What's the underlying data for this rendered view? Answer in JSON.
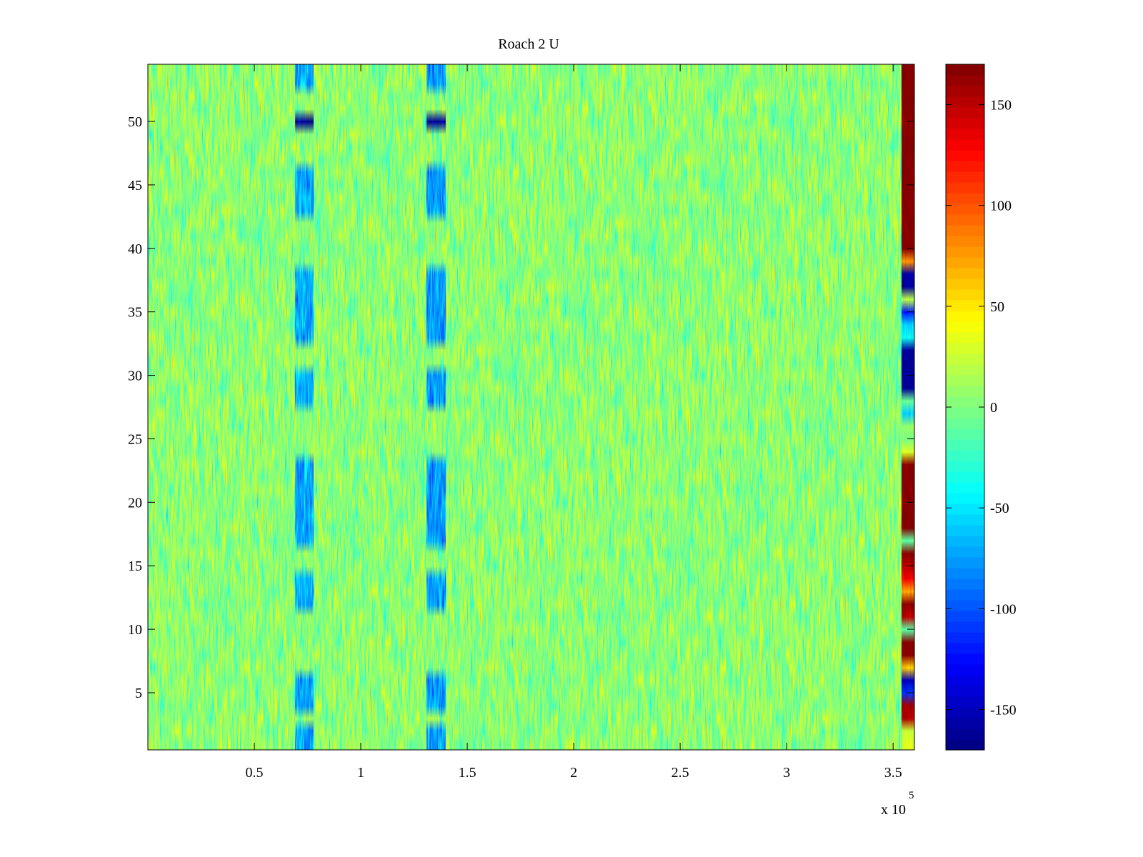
{
  "chart_data": {
    "type": "heatmap",
    "title": "Roach 2 U",
    "xlabel": "",
    "ylabel": "",
    "x_multiplier": "x 10",
    "x_multiplier_exponent": "5",
    "xlim": [
      0,
      360000
    ],
    "ylim": [
      0.5,
      54.5
    ],
    "x_ticks": [
      50000,
      100000,
      150000,
      200000,
      250000,
      300000,
      350000
    ],
    "x_tick_labels": [
      "0.5",
      "1",
      "1.5",
      "2",
      "2.5",
      "3",
      "3.5"
    ],
    "y_ticks": [
      5,
      10,
      15,
      20,
      25,
      30,
      35,
      40,
      45,
      50
    ],
    "y_tick_labels": [
      "5",
      "10",
      "15",
      "20",
      "25",
      "30",
      "35",
      "40",
      "45",
      "50"
    ],
    "rows": 54,
    "colorbar": {
      "colormap": "jet",
      "limits": [
        -170,
        170
      ],
      "ticks": [
        -150,
        -100,
        -50,
        0,
        50,
        100,
        150
      ],
      "tick_labels": [
        "-150",
        "-100",
        "-50",
        "0",
        "50",
        "100",
        "150"
      ]
    },
    "background_noise": {
      "mean": 5,
      "spread": 22
    },
    "features": [
      {
        "kind": "low-band",
        "x_range": [
          69000,
          78000
        ],
        "rows": [
          50
        ],
        "value": -165
      },
      {
        "kind": "low-band",
        "x_range": [
          131000,
          140000
        ],
        "rows": [
          50
        ],
        "value": -165
      },
      {
        "kind": "low-band",
        "x_range": [
          69000,
          78000
        ],
        "rows": [
          1,
          2,
          4,
          5,
          6,
          12,
          13,
          14,
          17,
          18,
          19,
          20,
          21,
          22,
          23,
          28,
          29,
          30,
          33,
          34,
          35,
          36,
          37,
          38,
          43,
          44,
          45,
          46,
          53,
          54
        ],
        "value": -70
      },
      {
        "kind": "low-band",
        "x_range": [
          131000,
          140000
        ],
        "rows": [
          1,
          2,
          4,
          5,
          6,
          12,
          13,
          14,
          17,
          18,
          19,
          20,
          21,
          22,
          23,
          28,
          29,
          30,
          33,
          34,
          35,
          36,
          37,
          38,
          43,
          44,
          45,
          46,
          53,
          54
        ],
        "value": -75
      },
      {
        "kind": "edge-column",
        "x_range": [
          354000,
          360000
        ],
        "row_values": [
          30,
          25,
          150,
          160,
          -110,
          -150,
          60,
          170,
          170,
          -10,
          150,
          170,
          75,
          130,
          150,
          170,
          -10,
          170,
          170,
          170,
          170,
          170,
          170,
          30,
          0,
          10,
          -55,
          -10,
          -160,
          -160,
          -160,
          -160,
          -40,
          -55,
          -120,
          20,
          -160,
          -160,
          80,
          170,
          170,
          170,
          170,
          170,
          170,
          170,
          170,
          170,
          170,
          170,
          170,
          170,
          170,
          170
        ]
      }
    ]
  }
}
